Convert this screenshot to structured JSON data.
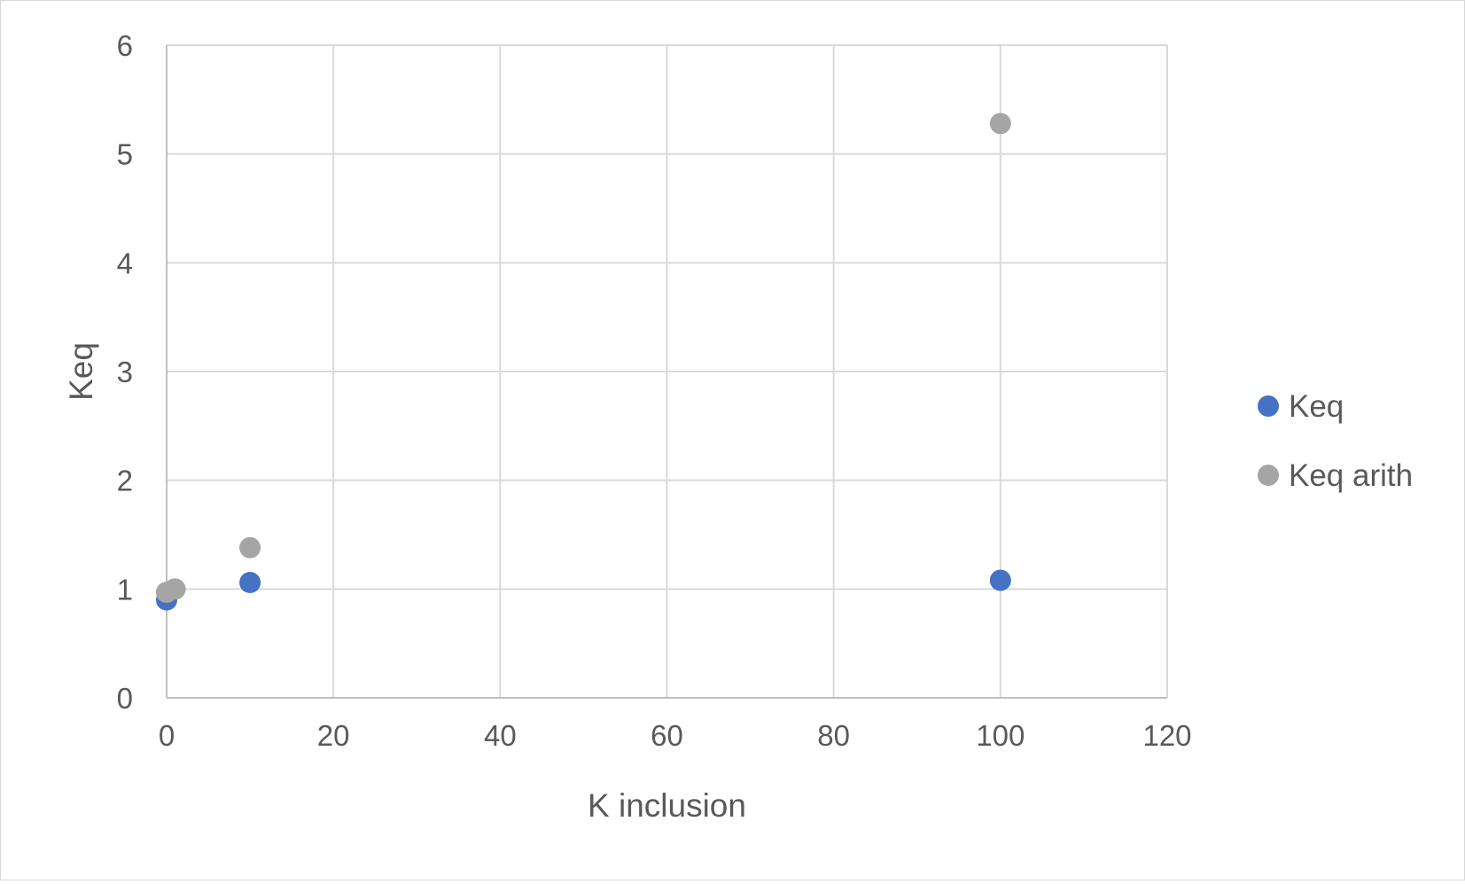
{
  "chart_data": {
    "type": "scatter",
    "title": "",
    "xlabel": "K inclusion",
    "ylabel": "Keq",
    "xlim": [
      0,
      120
    ],
    "ylim": [
      0,
      6
    ],
    "x_ticks": [
      0,
      20,
      40,
      60,
      80,
      100,
      120
    ],
    "y_ticks": [
      0,
      1,
      2,
      3,
      4,
      5,
      6
    ],
    "x_tick_labels": [
      "0",
      "20",
      "40",
      "60",
      "80",
      "100",
      "120"
    ],
    "y_tick_labels": [
      "0",
      "1",
      "2",
      "3",
      "4",
      "5",
      "6"
    ],
    "grid": true,
    "legend_position": "right",
    "series": [
      {
        "name": "Keq",
        "color": "#4472c4",
        "points": [
          {
            "x": 0,
            "y": 0.9
          },
          {
            "x": 1,
            "y": 1.0
          },
          {
            "x": 10,
            "y": 1.06
          },
          {
            "x": 100,
            "y": 1.08
          }
        ]
      },
      {
        "name": "Keq arith",
        "color": "#a5a5a5",
        "points": [
          {
            "x": 0,
            "y": 0.97
          },
          {
            "x": 1,
            "y": 1.0
          },
          {
            "x": 10,
            "y": 1.38
          },
          {
            "x": 100,
            "y": 5.28
          }
        ]
      }
    ]
  }
}
